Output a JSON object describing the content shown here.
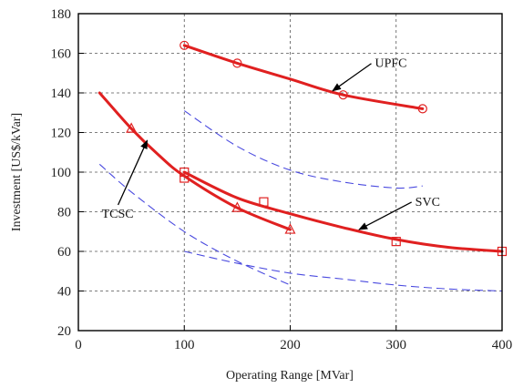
{
  "chart_data": {
    "type": "line",
    "title": "",
    "xlabel": "Operating Range [MVar]",
    "ylabel": "Investment [US$/kVar]",
    "xlim": [
      0,
      400
    ],
    "ylim": [
      20,
      180
    ],
    "x_ticks": [
      0,
      100,
      200,
      300,
      400
    ],
    "y_ticks": [
      20,
      40,
      60,
      80,
      100,
      120,
      140,
      160,
      180
    ],
    "grid": true,
    "colors": {
      "main": "#e02020",
      "dashed": "#4a4adf",
      "grid": "#555555",
      "axis": "#000000"
    },
    "series": [
      {
        "name": "UPFC",
        "style": "solid",
        "marker": "circle",
        "x": [
          100,
          150,
          200,
          250,
          325
        ],
        "y": [
          164,
          155,
          147,
          139,
          132
        ],
        "markers": [
          [
            100,
            164
          ],
          [
            150,
            155
          ],
          [
            250,
            139
          ],
          [
            325,
            132
          ]
        ]
      },
      {
        "name": "SVC",
        "style": "solid",
        "marker": "square",
        "x": [
          100,
          150,
          200,
          250,
          300,
          350,
          400
        ],
        "y": [
          100,
          87,
          79,
          72,
          66,
          62,
          60
        ],
        "markers": [
          [
            100,
            100
          ],
          [
            100,
            97
          ],
          [
            175,
            85
          ],
          [
            300,
            65
          ],
          [
            400,
            60
          ]
        ]
      },
      {
        "name": "TCSC",
        "style": "solid",
        "marker": "triangle",
        "x": [
          20,
          50,
          75,
          100,
          150,
          200
        ],
        "y": [
          140,
          122,
          109,
          98,
          82,
          71
        ],
        "markers": [
          [
            50,
            122
          ],
          [
            150,
            82
          ],
          [
            200,
            71
          ]
        ]
      },
      {
        "name": "",
        "style": "dashed",
        "marker": "none",
        "x": [
          100,
          150,
          200,
          250,
          300,
          325
        ],
        "y": [
          131,
          113,
          101,
          95,
          92,
          93
        ]
      },
      {
        "name": "",
        "style": "dashed",
        "marker": "none",
        "x": [
          100,
          150,
          200,
          250,
          300,
          350,
          400
        ],
        "y": [
          60,
          54,
          49,
          46,
          43,
          41,
          40
        ]
      },
      {
        "name": "",
        "style": "dashed",
        "marker": "none",
        "x": [
          20,
          50,
          100,
          150,
          200
        ],
        "y": [
          104,
          90,
          70,
          55,
          43
        ]
      }
    ],
    "annotations": [
      {
        "text": "UPFC",
        "text_at": [
          280,
          153
        ],
        "arrow_to": [
          240,
          141
        ]
      },
      {
        "text": "SVC",
        "text_at": [
          318,
          83
        ],
        "arrow_to": [
          265,
          71
        ]
      },
      {
        "text": "TCSC",
        "text_at": [
          22,
          77
        ],
        "arrow_to": [
          65,
          116
        ]
      }
    ]
  }
}
